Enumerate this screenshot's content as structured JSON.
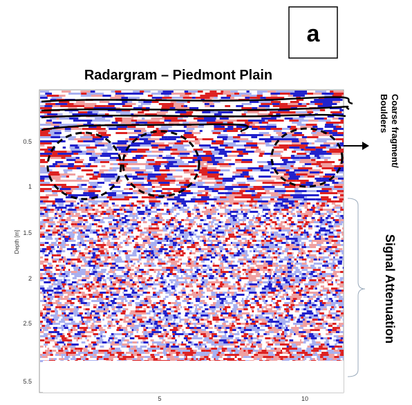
{
  "panel_label": "a",
  "title": "Radargram – Piedmont Plain",
  "y_axis": {
    "label": "Depth [m]",
    "ticks": [
      "0.5",
      "1",
      "1.5",
      "2",
      "2.5",
      "5.5"
    ]
  },
  "x_axis": {
    "ticks": [
      "5",
      "10"
    ]
  },
  "annotations": {
    "boulders": [
      "Coarse fragment/",
      "Boulders"
    ],
    "attenuation": "Signal Attenuation"
  }
}
